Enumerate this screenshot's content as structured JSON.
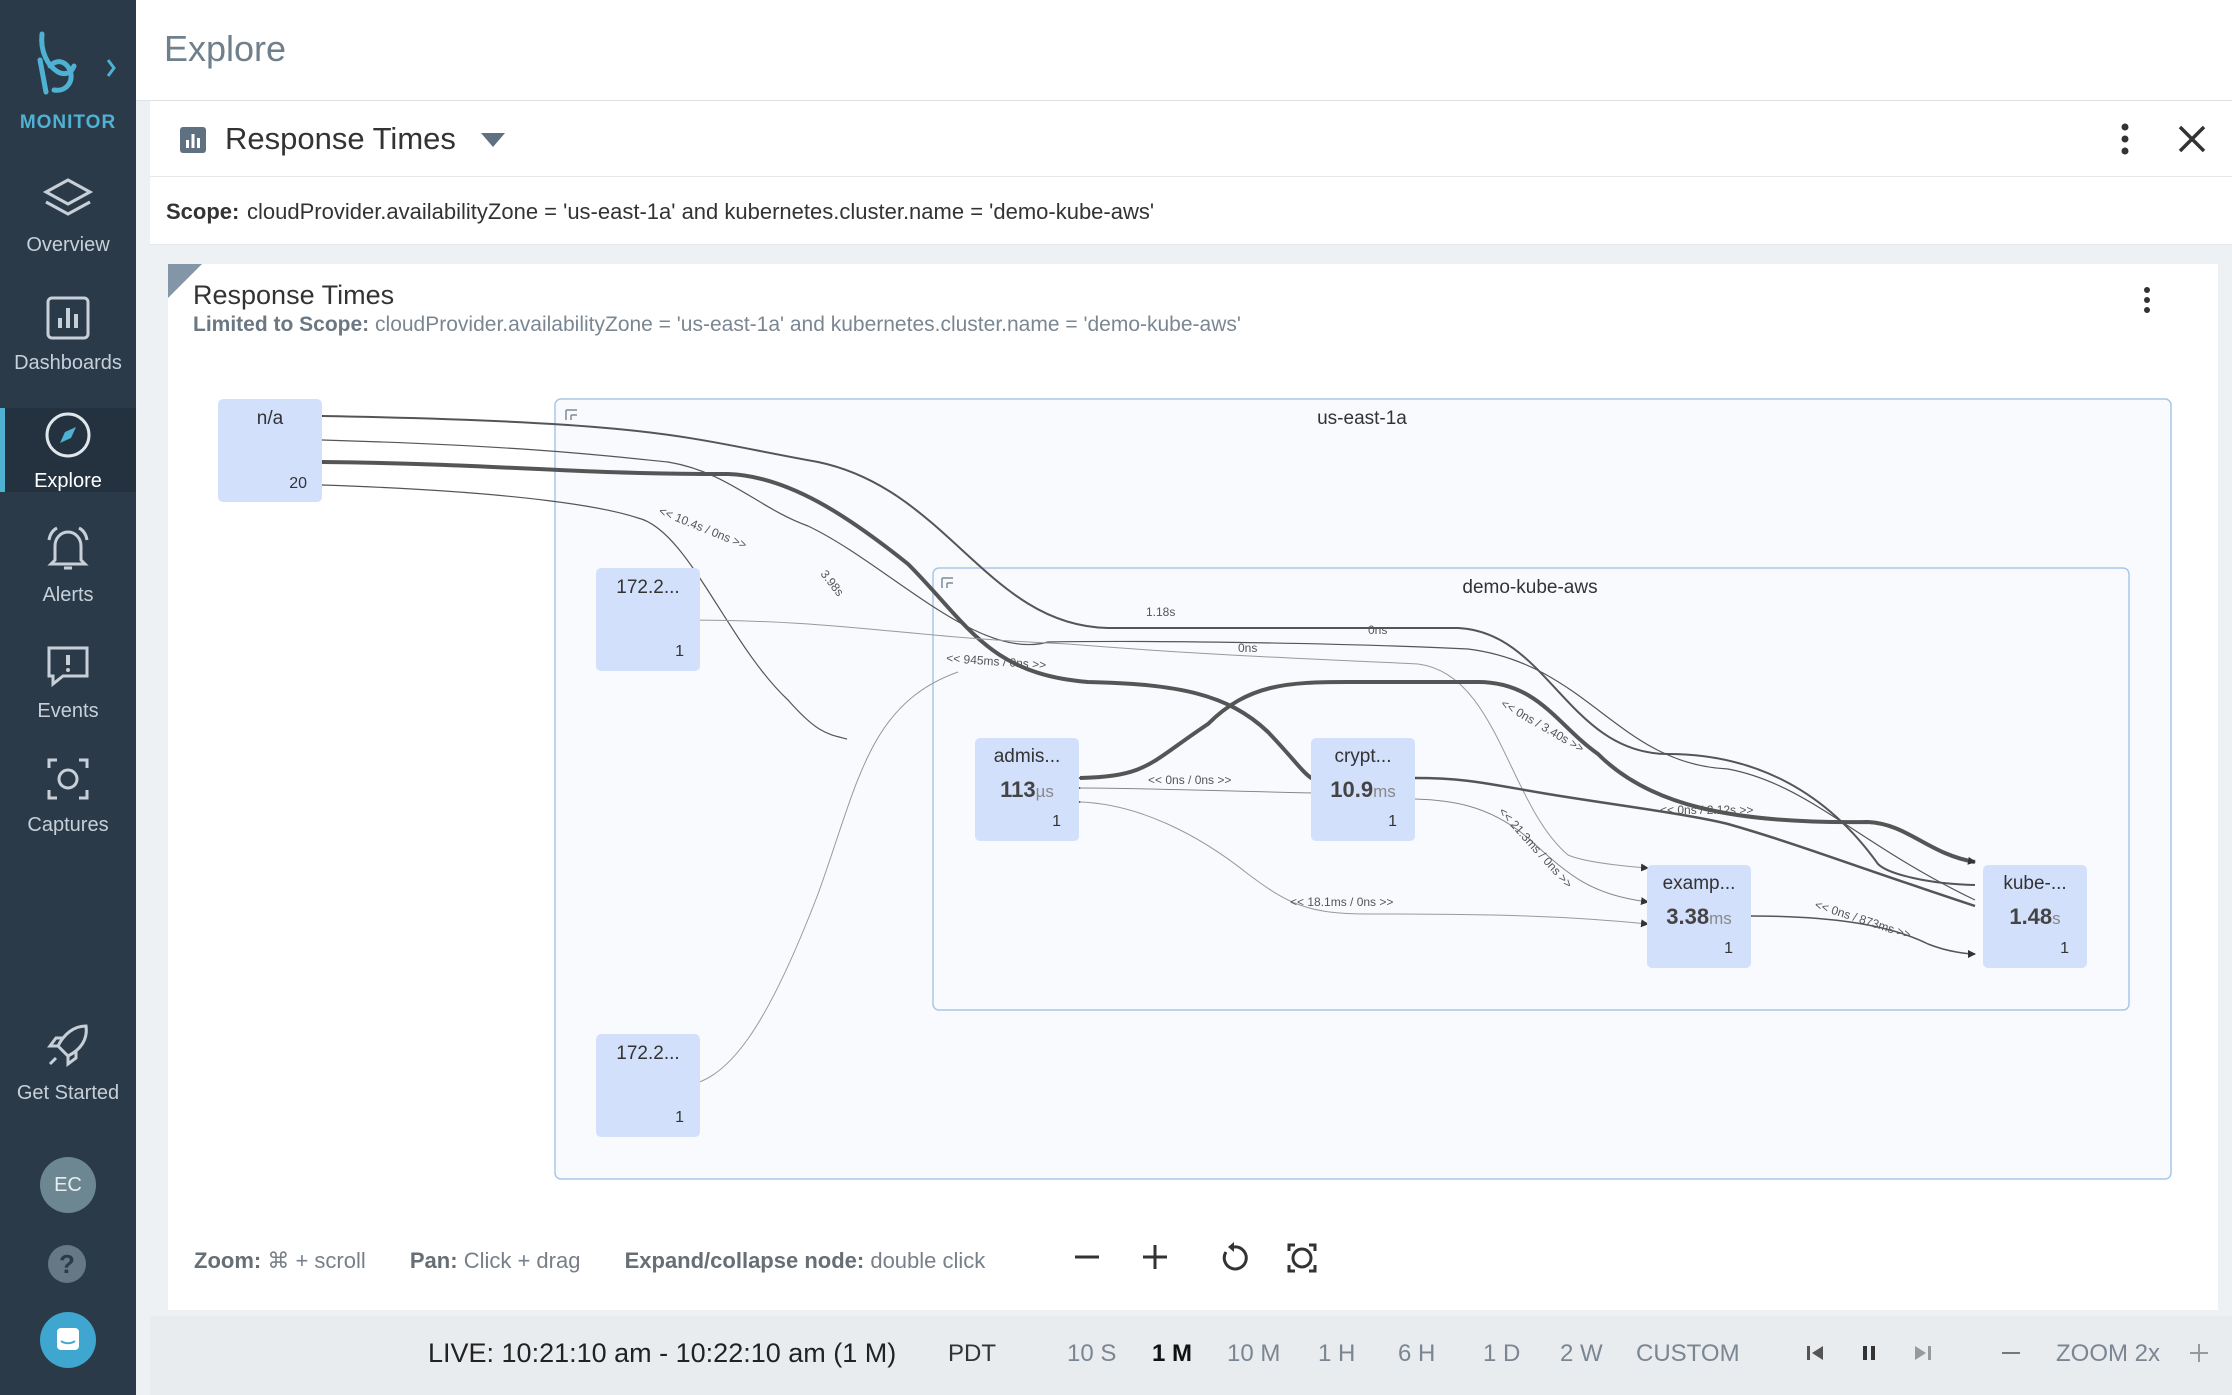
{
  "sidebar": {
    "logo_text": "MONITOR",
    "items": [
      {
        "label": "Overview",
        "icon": "layers-icon"
      },
      {
        "label": "Dashboards",
        "icon": "bar-chart-icon"
      },
      {
        "label": "Explore",
        "icon": "compass-icon",
        "active": true
      },
      {
        "label": "Alerts",
        "icon": "bell-icon"
      },
      {
        "label": "Events",
        "icon": "chat-alert-icon"
      },
      {
        "label": "Captures",
        "icon": "camera-icon"
      },
      {
        "label": "Get Started",
        "icon": "rocket-icon"
      }
    ],
    "avatar": "EC",
    "help": "?"
  },
  "header": {
    "title": "Explore"
  },
  "card": {
    "title": "Response Times",
    "scope_label": "Scope:",
    "scope_value": "cloudProvider.availabilityZone = 'us-east-1a' and kubernetes.cluster.name = 'demo-kube-aws'"
  },
  "panel": {
    "title": "Response Times",
    "scope_label": "Limited to Scope:",
    "scope_value": "cloudProvider.availabilityZone = 'us-east-1a' and kubernetes.cluster.name = 'demo-kube-aws'"
  },
  "graph": {
    "groups": [
      {
        "id": "zone",
        "label": "us-east-1a"
      },
      {
        "id": "cluster",
        "label": "demo-kube-aws"
      }
    ],
    "nodes": [
      {
        "id": "na",
        "name": "n/a",
        "value": "",
        "unit": "",
        "count": "20"
      },
      {
        "id": "ip1",
        "name": "172.2...",
        "value": "",
        "unit": "",
        "count": "1"
      },
      {
        "id": "ip2",
        "name": "172.2...",
        "value": "",
        "unit": "",
        "count": "1"
      },
      {
        "id": "admis",
        "name": "admis...",
        "value": "113",
        "unit": "µs",
        "count": "1"
      },
      {
        "id": "crypt",
        "name": "crypt...",
        "value": "10.9",
        "unit": "ms",
        "count": "1"
      },
      {
        "id": "examp",
        "name": "examp...",
        "value": "3.38",
        "unit": "ms",
        "count": "1"
      },
      {
        "id": "kube",
        "name": "kube-...",
        "value": "1.48",
        "unit": "s",
        "count": "1"
      }
    ],
    "edge_labels": [
      "<< 10.4s / 0ns >>",
      "3.98s",
      "1.18s",
      "0ns",
      "0ns",
      "<< 945ms / 0ns >>",
      "<< 0ns / 0ns >>",
      "<< 0ns / 3.40s >>",
      "<< 0ns / 2.12s >>",
      "<< 21.3ms / 0ns >>",
      "<< 18.1ms / 0ns >>",
      "<< 0ns / 873ms >>"
    ]
  },
  "help": {
    "zoom_key": "Zoom:",
    "zoom_val": "⌘ + scroll",
    "pan_key": "Pan:",
    "pan_val": "Click + drag",
    "expand_key": "Expand/collapse node:",
    "expand_val": "double click"
  },
  "timebar": {
    "live": "LIVE: 10:21:10 am - 10:22:10 am (1 M)",
    "tz": "PDT",
    "ranges": [
      "10 S",
      "1 M",
      "10 M",
      "1 H",
      "6 H",
      "1 D",
      "2 W",
      "CUSTOM"
    ],
    "selected": "1 M",
    "zoom": "ZOOM 2x"
  }
}
